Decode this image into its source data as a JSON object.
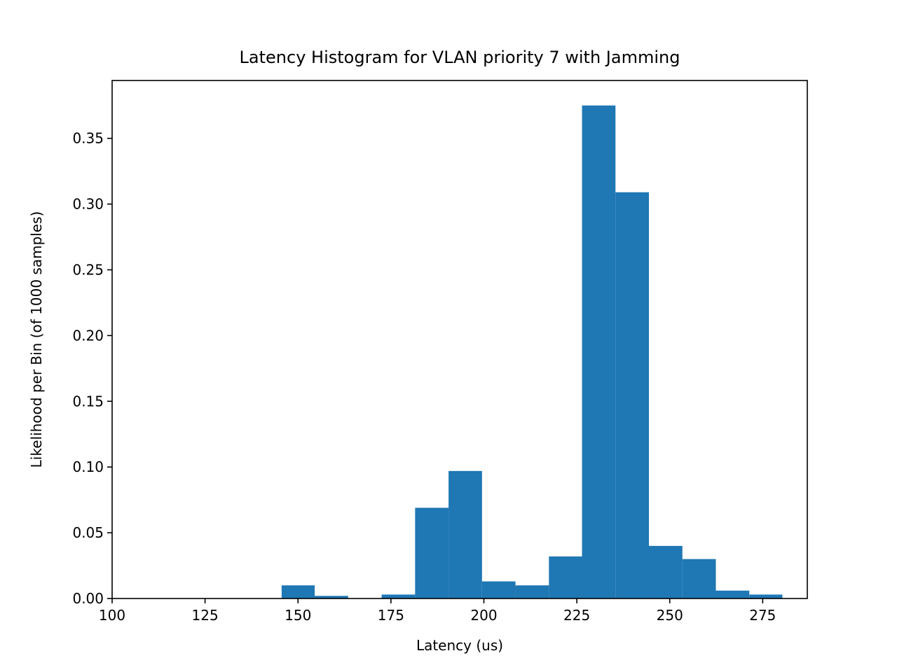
{
  "chart_data": {
    "type": "bar",
    "title": "Latency Histogram for VLAN priority 7 with Jamming",
    "xlabel": "Latency (us)",
    "ylabel": "Likelihood per Bin (of 1000 samples)",
    "xlim": [
      100,
      287
    ],
    "ylim": [
      0,
      0.394
    ],
    "xticks": [
      100,
      125,
      150,
      175,
      200,
      225,
      250,
      275
    ],
    "xtick_labels": [
      "100",
      "125",
      "150",
      "175",
      "200",
      "225",
      "250",
      "275"
    ],
    "yticks": [
      0,
      0.05,
      0.1,
      0.15,
      0.2,
      0.25,
      0.3,
      0.35
    ],
    "ytick_labels": [
      "0.00",
      "0.05",
      "0.10",
      "0.15",
      "0.20",
      "0.25",
      "0.30",
      "0.35"
    ],
    "grid": false,
    "legend": false,
    "bin_edges": [
      145.6,
      154.5,
      163.5,
      172.5,
      181.5,
      190.5,
      199.5,
      208.5,
      217.5,
      226.4,
      235.4,
      244.4,
      253.4,
      262.4,
      271.4,
      280.3
    ],
    "values": [
      0.01,
      0.002,
      0.0,
      0.003,
      0.069,
      0.097,
      0.013,
      0.01,
      0.032,
      0.375,
      0.309,
      0.04,
      0.03,
      0.006,
      0.003
    ],
    "color": "#1f77b4"
  }
}
